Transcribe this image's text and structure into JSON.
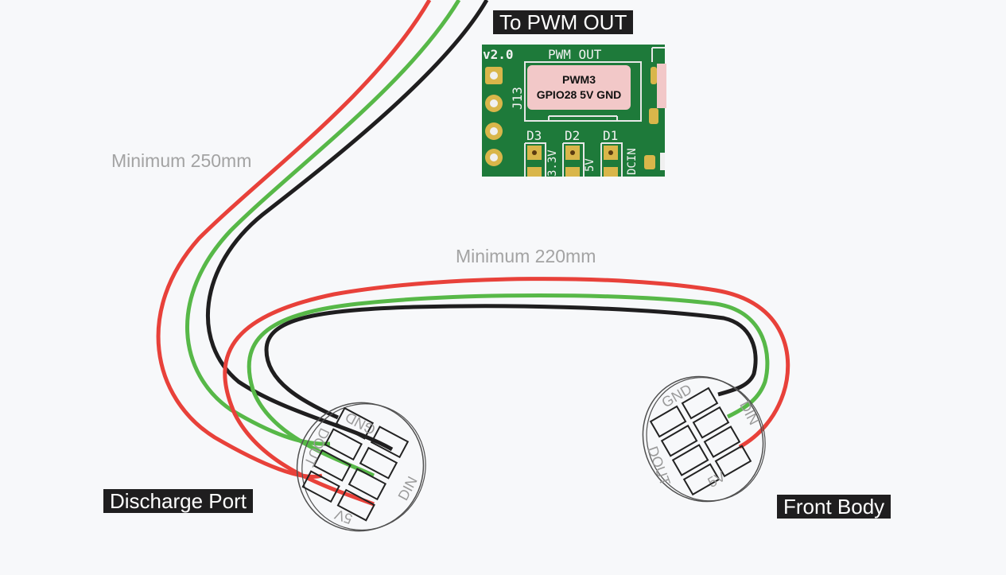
{
  "labels": {
    "to_pwm_out": "To PWM OUT",
    "discharge_port": "Discharge Port",
    "front_body": "Front Body",
    "min_250": "Minimum 250mm",
    "min_220": "Minimum 220mm"
  },
  "pcb": {
    "version": "v2.0",
    "header": "PWM OUT",
    "connector_ref": "J13",
    "pad_line1": "PWM3",
    "pad_line2": "GPIO28 5V GND",
    "diodes": [
      "D3",
      "D2",
      "D1"
    ],
    "rails": [
      "3.3V",
      "5V",
      "DCIN"
    ]
  },
  "discharge_connector": {
    "pins": [
      "GND",
      "DOUT",
      "DIN",
      "5V"
    ]
  },
  "front_connector": {
    "pins": [
      "GND",
      "DIN",
      "DOUT",
      "5V"
    ]
  },
  "colors": {
    "wire_5v": "#e8413a",
    "wire_data": "#57b848",
    "wire_gnd": "#1f1e1f",
    "pcb_green": "#1e7a3a",
    "pad_pink": "#f2c8c8",
    "background": "#f7f8fa"
  }
}
